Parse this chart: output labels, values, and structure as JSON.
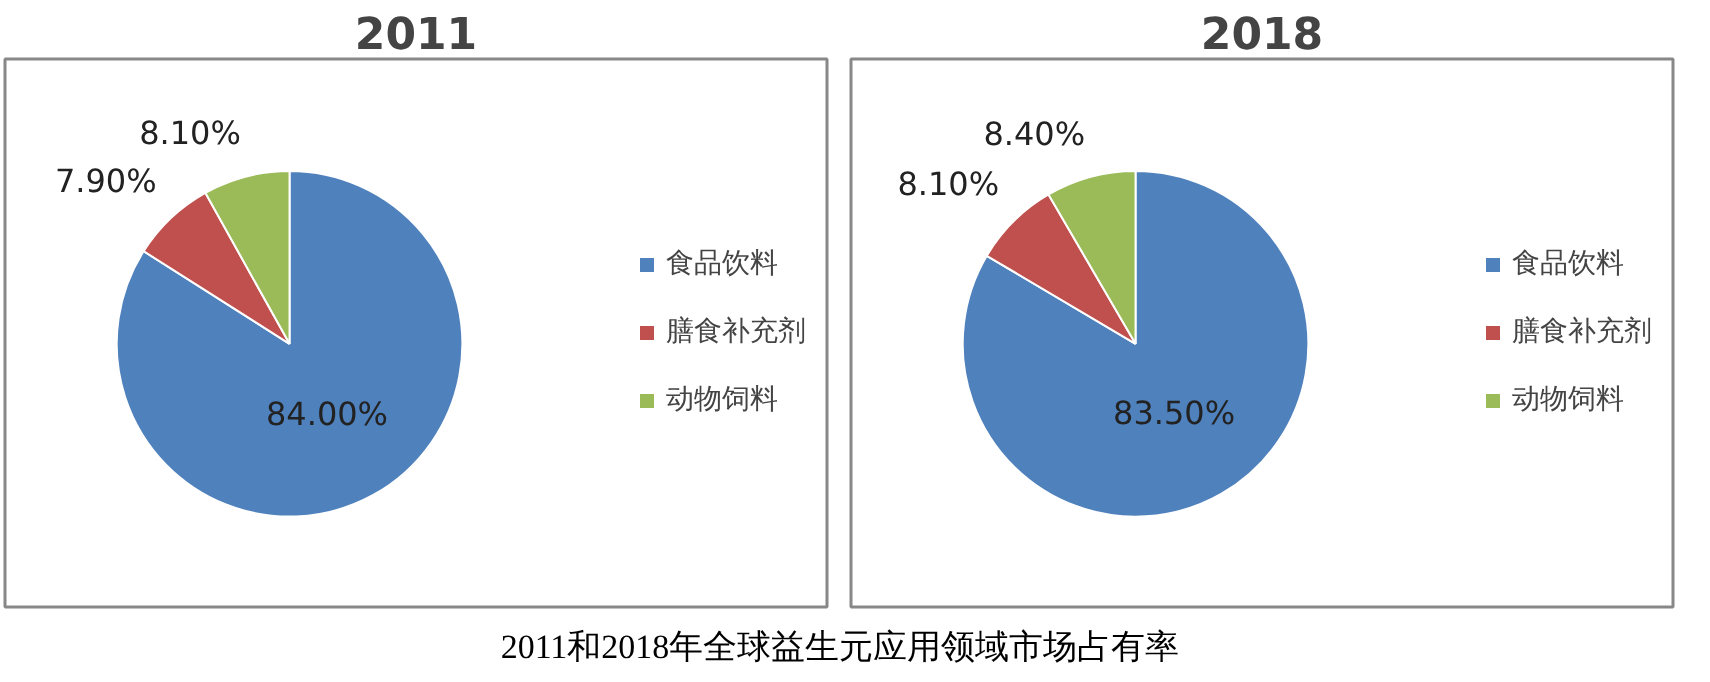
{
  "chart_data": [
    {
      "type": "pie",
      "title": "2011",
      "categories": [
        "食品饮料",
        "膳食补充剂",
        "动物饲料"
      ],
      "values": [
        84.0,
        7.9,
        8.1
      ],
      "colors": [
        "#4f81bd",
        "#c0504d",
        "#9bbb59"
      ],
      "value_labels": [
        "84.00%",
        "7.90%",
        "8.10%"
      ],
      "legend": "right"
    },
    {
      "type": "pie",
      "title": "2018",
      "categories": [
        "食品饮料",
        "膳食补充剂",
        "动物饲料"
      ],
      "values": [
        83.5,
        8.1,
        8.4
      ],
      "colors": [
        "#4f81bd",
        "#c0504d",
        "#9bbb59"
      ],
      "value_labels": [
        "83.50%",
        "8.10%",
        "8.40%"
      ],
      "legend": "right",
      "annotations": [
        "2011和2018年全球益生元应用领域市场占有率"
      ]
    }
  ]
}
